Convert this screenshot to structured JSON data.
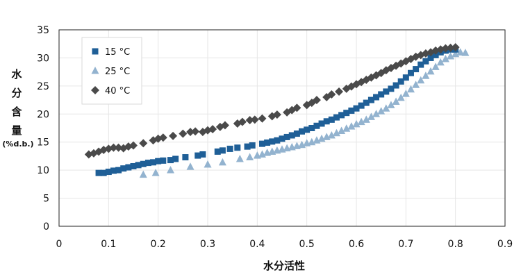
{
  "chart_data": {
    "type": "scatter",
    "xlabel": "水分活性",
    "ylabel_chars": [
      "水",
      "分",
      "含",
      "量"
    ],
    "ylabel_unit": "(%d.b.)",
    "xlim": [
      0,
      0.9
    ],
    "ylim": [
      0,
      35
    ],
    "x_ticks": [
      "0",
      "0.1",
      "0.2",
      "0.3",
      "0.4",
      "0.5",
      "0.6",
      "0.7",
      "0.8",
      "0.9"
    ],
    "y_ticks": [
      "0",
      "5",
      "10",
      "15",
      "20",
      "25",
      "30",
      "35"
    ],
    "grid": true,
    "legend_position": "top-left",
    "series": [
      {
        "name": "15 °C",
        "marker": "square",
        "color": "#1f5f97",
        "x": [
          0.08,
          0.09,
          0.1,
          0.11,
          0.12,
          0.13,
          0.14,
          0.15,
          0.16,
          0.17,
          0.18,
          0.19,
          0.2,
          0.21,
          0.225,
          0.235,
          0.255,
          0.28,
          0.29,
          0.32,
          0.33,
          0.345,
          0.36,
          0.38,
          0.39,
          0.41,
          0.42,
          0.43,
          0.44,
          0.45,
          0.46,
          0.47,
          0.48,
          0.49,
          0.5,
          0.51,
          0.52,
          0.53,
          0.54,
          0.55,
          0.56,
          0.57,
          0.58,
          0.59,
          0.6,
          0.61,
          0.62,
          0.63,
          0.64,
          0.65,
          0.66,
          0.67,
          0.68,
          0.69,
          0.7,
          0.71,
          0.72,
          0.73,
          0.74,
          0.75,
          0.76,
          0.77,
          0.78,
          0.79,
          0.8
        ],
        "y": [
          9.5,
          9.5,
          9.7,
          9.9,
          10.0,
          10.3,
          10.5,
          10.7,
          10.9,
          11.1,
          11.3,
          11.4,
          11.6,
          11.7,
          11.8,
          12.0,
          12.3,
          12.6,
          12.8,
          13.3,
          13.5,
          13.8,
          14.0,
          14.2,
          14.4,
          14.7,
          14.9,
          15.1,
          15.3,
          15.6,
          15.9,
          16.2,
          16.5,
          16.9,
          17.2,
          17.5,
          17.9,
          18.3,
          18.7,
          19.0,
          19.4,
          19.8,
          20.2,
          20.6,
          21.0,
          21.5,
          22.0,
          22.5,
          23.0,
          23.5,
          24.0,
          24.5,
          25.1,
          25.8,
          26.5,
          27.3,
          28.0,
          28.8,
          29.4,
          30.0,
          30.5,
          31.0,
          31.3,
          31.5,
          31.5
        ]
      },
      {
        "name": "25 °C",
        "marker": "triangle",
        "color": "#93b3cf",
        "x": [
          0.17,
          0.195,
          0.225,
          0.265,
          0.3,
          0.33,
          0.365,
          0.385,
          0.4,
          0.41,
          0.42,
          0.43,
          0.44,
          0.45,
          0.46,
          0.47,
          0.48,
          0.49,
          0.5,
          0.51,
          0.52,
          0.53,
          0.54,
          0.55,
          0.56,
          0.57,
          0.58,
          0.59,
          0.6,
          0.61,
          0.62,
          0.63,
          0.64,
          0.65,
          0.66,
          0.67,
          0.68,
          0.69,
          0.7,
          0.71,
          0.72,
          0.73,
          0.74,
          0.75,
          0.76,
          0.77,
          0.78,
          0.79,
          0.8,
          0.81,
          0.82
        ],
        "y": [
          9.2,
          9.5,
          10.0,
          10.6,
          11.0,
          11.4,
          12.0,
          12.3,
          12.6,
          12.8,
          13.1,
          13.3,
          13.5,
          13.7,
          13.9,
          14.1,
          14.3,
          14.5,
          14.8,
          15.0,
          15.3,
          15.6,
          15.9,
          16.2,
          16.6,
          17.0,
          17.4,
          17.8,
          18.2,
          18.6,
          19.0,
          19.5,
          20.0,
          20.5,
          21.0,
          21.6,
          22.2,
          22.9,
          23.6,
          24.4,
          25.2,
          26.0,
          26.8,
          27.6,
          28.4,
          29.2,
          29.8,
          30.3,
          30.7,
          31.0,
          30.9
        ]
      },
      {
        "name": "40 °C",
        "marker": "diamond",
        "color": "#4a4a4a",
        "x": [
          0.06,
          0.07,
          0.08,
          0.09,
          0.1,
          0.11,
          0.12,
          0.13,
          0.14,
          0.15,
          0.17,
          0.19,
          0.2,
          0.21,
          0.23,
          0.25,
          0.265,
          0.275,
          0.29,
          0.3,
          0.31,
          0.325,
          0.335,
          0.36,
          0.37,
          0.385,
          0.395,
          0.41,
          0.43,
          0.44,
          0.46,
          0.47,
          0.48,
          0.5,
          0.51,
          0.52,
          0.54,
          0.55,
          0.565,
          0.58,
          0.59,
          0.6,
          0.61,
          0.62,
          0.63,
          0.64,
          0.65,
          0.66,
          0.67,
          0.68,
          0.69,
          0.7,
          0.71,
          0.72,
          0.73,
          0.74,
          0.75,
          0.76,
          0.77,
          0.78,
          0.79,
          0.8
        ],
        "y": [
          12.8,
          13.0,
          13.3,
          13.6,
          13.8,
          14.0,
          14.0,
          13.9,
          14.2,
          14.4,
          14.8,
          15.3,
          15.6,
          15.8,
          16.1,
          16.5,
          16.8,
          16.9,
          16.8,
          17.1,
          17.3,
          17.7,
          18.0,
          18.3,
          18.6,
          18.9,
          19.0,
          19.2,
          19.6,
          19.9,
          20.3,
          20.7,
          21.1,
          21.6,
          22.0,
          22.5,
          23.0,
          23.5,
          24.0,
          24.5,
          24.9,
          25.3,
          25.7,
          26.1,
          26.5,
          26.9,
          27.3,
          27.8,
          28.2,
          28.6,
          29.0,
          29.4,
          29.8,
          30.2,
          30.5,
          30.8,
          31.0,
          31.3,
          31.5,
          31.7,
          31.8,
          31.9
        ]
      }
    ]
  }
}
